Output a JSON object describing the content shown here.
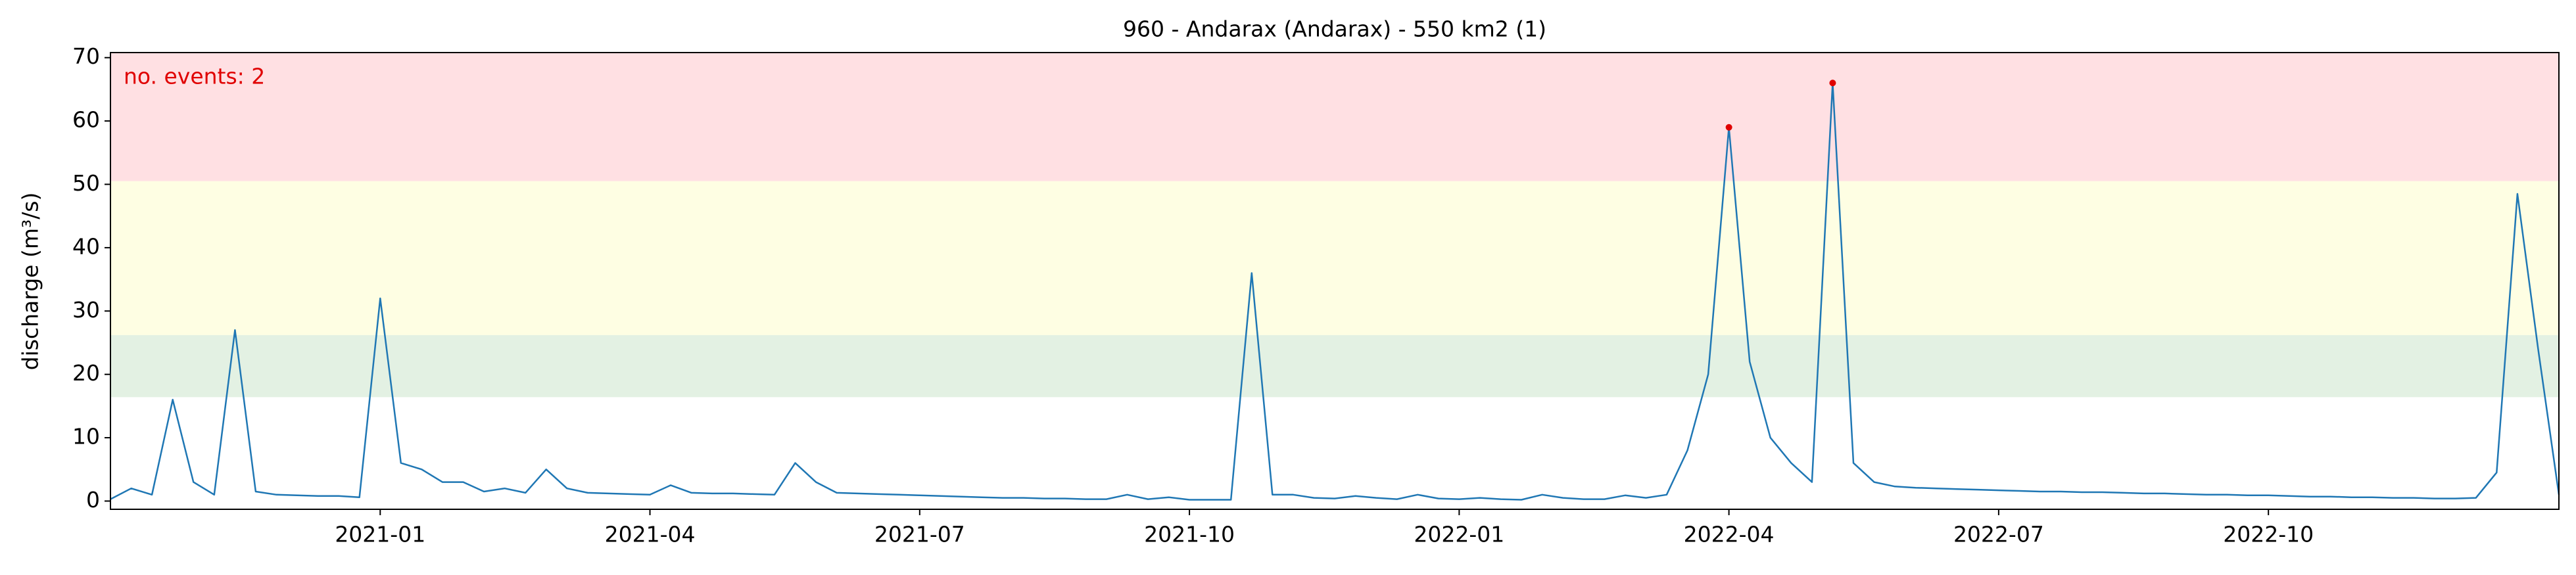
{
  "chart_data": {
    "type": "line",
    "title": "960 - Andarax (Andarax) - 550 km2 (1)",
    "y_label": "discharge (m³/s)",
    "annotation": "no. events: 2",
    "annotation_color": "#e00000",
    "ylim": [
      -1.3,
      70.8
    ],
    "yticks": [
      0,
      10,
      20,
      30,
      40,
      50,
      60,
      70
    ],
    "bands": [
      {
        "from": 50.5,
        "to": 70.8,
        "color": "#ffe0e3"
      },
      {
        "from": 26.2,
        "to": 50.5,
        "color": "#fefee3"
      },
      {
        "from": 16.4,
        "to": 26.2,
        "color": "#e3f1e3"
      }
    ],
    "categories": [
      null,
      null,
      null,
      null,
      null,
      null,
      null,
      null,
      null,
      null,
      null,
      null,
      null,
      "2021-01",
      null,
      null,
      null,
      null,
      null,
      null,
      null,
      null,
      null,
      null,
      null,
      null,
      "2021-04",
      null,
      null,
      null,
      null,
      null,
      null,
      null,
      null,
      null,
      null,
      null,
      null,
      "2021-07",
      null,
      null,
      null,
      null,
      null,
      null,
      null,
      null,
      null,
      null,
      null,
      null,
      "2021-10",
      null,
      null,
      null,
      null,
      null,
      null,
      null,
      null,
      null,
      null,
      null,
      null,
      "2022-01",
      null,
      null,
      null,
      null,
      null,
      null,
      null,
      null,
      null,
      null,
      null,
      null,
      "2022-04",
      null,
      null,
      null,
      null,
      null,
      null,
      null,
      null,
      null,
      null,
      null,
      null,
      "2022-07",
      null,
      null,
      null,
      null,
      null,
      null,
      null,
      null,
      null,
      null,
      null,
      null,
      "2022-10",
      null,
      null,
      null,
      null,
      null,
      null,
      null,
      null,
      null,
      null,
      null,
      null,
      null,
      null
    ],
    "series": [
      {
        "color": "#1f77b4",
        "values": [
          0.3,
          2,
          1,
          16,
          3,
          1,
          27,
          1.5,
          1,
          0.9,
          0.8,
          0.8,
          0.6,
          32,
          6,
          5,
          3,
          3,
          1.5,
          2,
          1.3,
          5,
          2,
          1.3,
          1.2,
          1.1,
          1,
          2.5,
          1.3,
          1.2,
          1.2,
          1.1,
          1,
          6,
          3,
          1.3,
          1.2,
          1.1,
          1,
          0.9,
          0.8,
          0.7,
          0.6,
          0.5,
          0.5,
          0.4,
          0.4,
          0.3,
          0.3,
          1,
          0.3,
          0.6,
          0.2,
          0.2,
          0.2,
          36,
          1,
          1,
          0.5,
          0.4,
          0.8,
          0.5,
          0.3,
          1,
          0.4,
          0.3,
          0.5,
          0.3,
          0.2,
          1,
          0.5,
          0.3,
          0.3,
          0.9,
          0.5,
          1,
          8,
          20,
          59,
          22,
          10,
          6,
          3,
          66,
          6,
          3,
          2.3,
          2.1,
          2,
          1.9,
          1.8,
          1.7,
          1.6,
          1.5,
          1.5,
          1.4,
          1.4,
          1.3,
          1.2,
          1.2,
          1.1,
          1,
          1,
          0.9,
          0.9,
          0.8,
          0.7,
          0.7,
          0.6,
          0.6,
          0.5,
          0.5,
          0.4,
          0.4,
          0.5,
          4.5,
          48.5,
          24,
          1
        ]
      }
    ],
    "event_color": "#e00000",
    "event_values": [
      null,
      null,
      null,
      null,
      null,
      null,
      null,
      null,
      null,
      null,
      null,
      null,
      null,
      null,
      null,
      null,
      null,
      null,
      null,
      null,
      null,
      null,
      null,
      null,
      null,
      null,
      null,
      null,
      null,
      null,
      null,
      null,
      null,
      null,
      null,
      null,
      null,
      null,
      null,
      null,
      null,
      null,
      null,
      null,
      null,
      null,
      null,
      null,
      null,
      null,
      null,
      null,
      null,
      null,
      null,
      null,
      null,
      null,
      null,
      null,
      null,
      null,
      null,
      null,
      null,
      null,
      null,
      null,
      null,
      null,
      null,
      null,
      null,
      null,
      null,
      null,
      null,
      null,
      59,
      null,
      null,
      null,
      null,
      66,
      null,
      null,
      null,
      null,
      null,
      null,
      null,
      null,
      null,
      null,
      null,
      null,
      null,
      null,
      null,
      null,
      null,
      null,
      null,
      null,
      null,
      null,
      null,
      null,
      null,
      null,
      null,
      null,
      null,
      null,
      null,
      null,
      null,
      null,
      null
    ]
  }
}
